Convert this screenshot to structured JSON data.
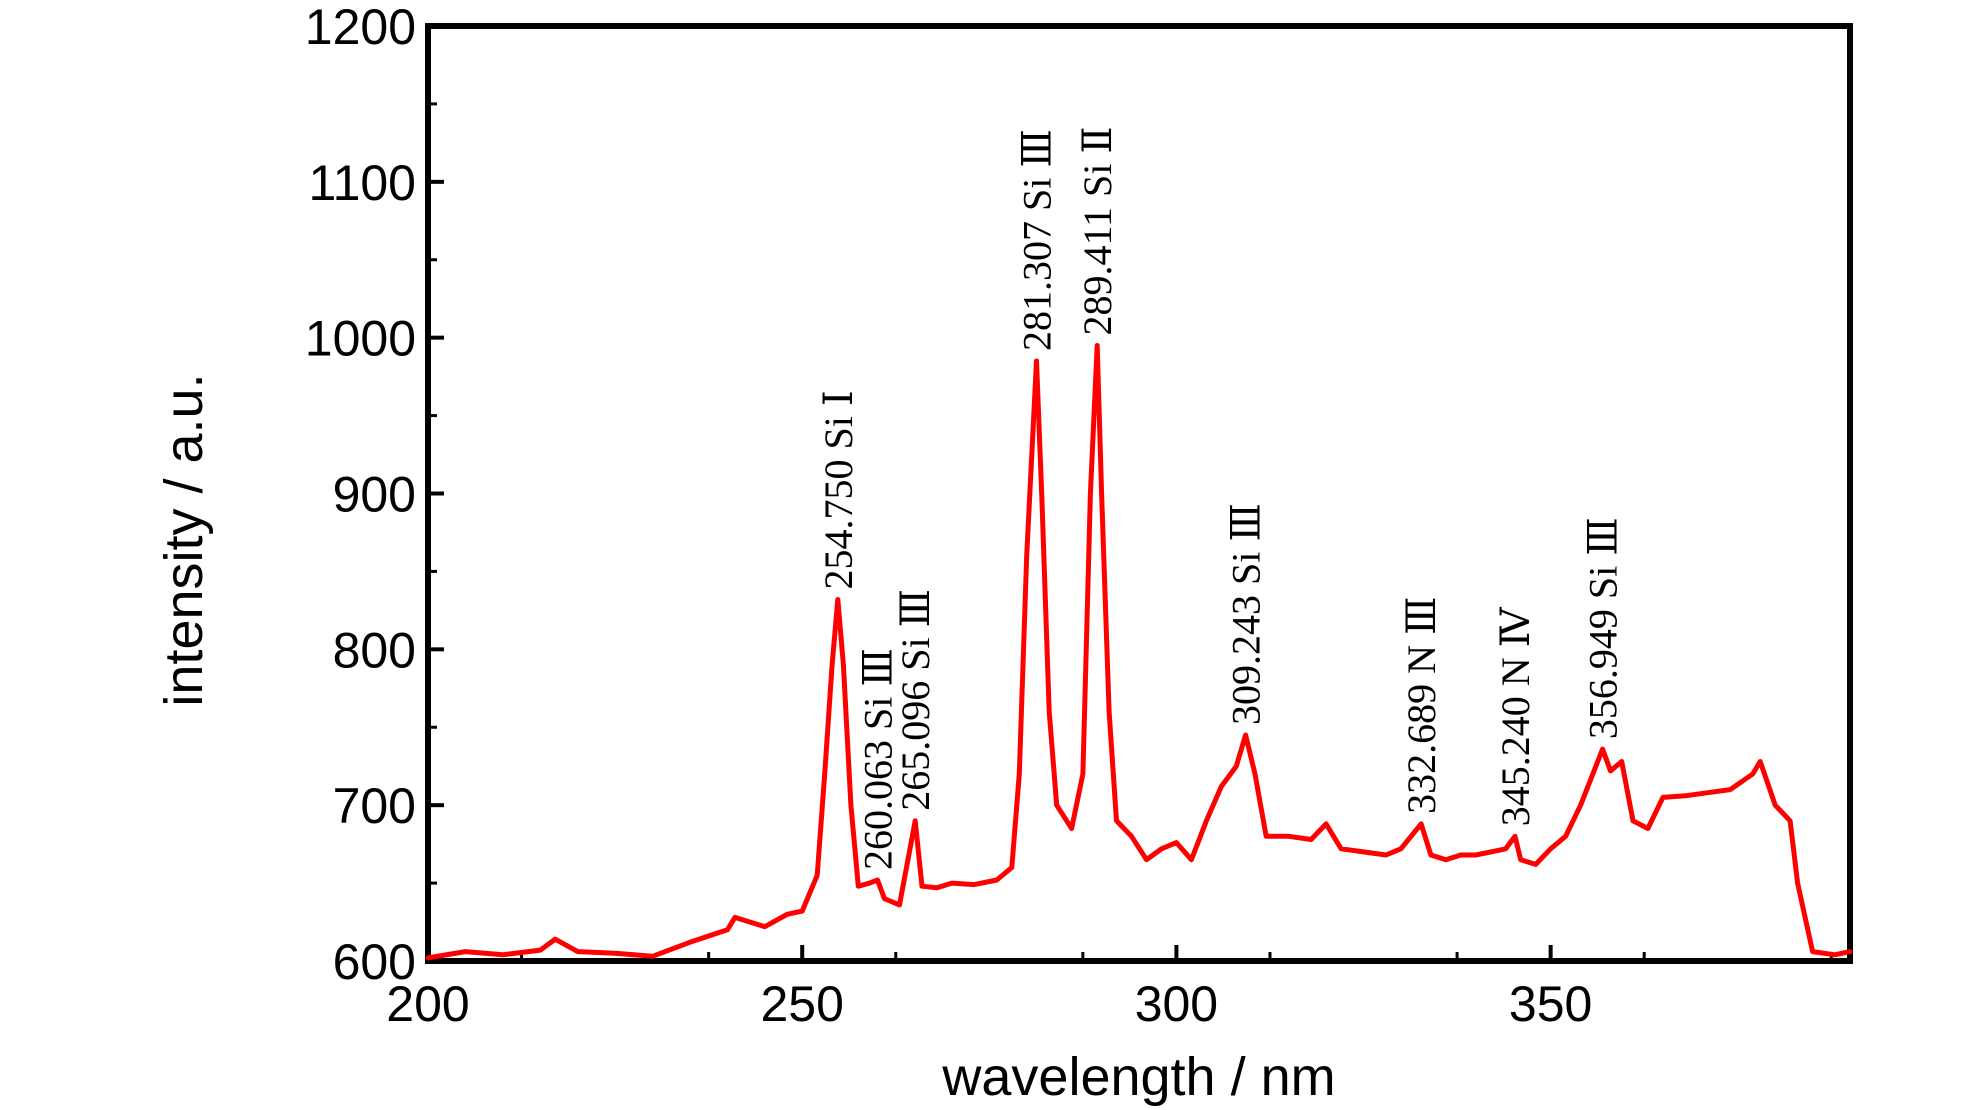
{
  "chart_data": {
    "type": "line",
    "title": "",
    "xlabel": "wavelength / nm",
    "ylabel": "intensity / a.u.",
    "xlim": [
      200,
      390
    ],
    "ylim": [
      600,
      1200
    ],
    "x_ticks": [
      200,
      250,
      300,
      350
    ],
    "x_tick_labels": [
      "200",
      "250",
      "300",
      "350"
    ],
    "y_ticks": [
      600,
      700,
      800,
      900,
      1000,
      1100,
      1200
    ],
    "y_tick_labels": [
      "600",
      "700",
      "800",
      "900",
      "1000",
      "1100",
      "1200"
    ],
    "grid": false,
    "legend": "none",
    "series": [
      {
        "color": "#ff0000",
        "x": [
          200,
          205,
          210,
          215,
          217,
          220,
          225,
          230,
          235,
          240,
          241,
          245,
          248,
          250,
          252,
          253,
          254,
          254.75,
          255.5,
          256.5,
          257.5,
          259,
          260.063,
          261,
          263,
          265.096,
          266,
          268,
          270,
          273,
          276,
          278,
          279,
          280,
          281.307,
          282,
          283,
          284,
          286,
          287.5,
          288.5,
          289.411,
          290,
          291,
          292,
          294,
          296,
          298,
          300,
          302,
          304,
          306,
          308,
          309.243,
          310.5,
          312,
          315,
          318,
          320,
          322,
          325,
          328,
          330,
          332.689,
          334,
          336,
          338,
          340,
          342,
          344,
          345.24,
          346,
          348,
          350,
          352,
          354,
          356.949,
          358,
          359.5,
          361,
          363,
          365,
          368,
          371,
          374,
          377,
          378,
          380,
          382,
          383,
          385,
          388,
          390
        ],
        "y": [
          602,
          606,
          604,
          607,
          614,
          606,
          605,
          603,
          612,
          620,
          628,
          622,
          630,
          632,
          655,
          720,
          790,
          832,
          790,
          700,
          648,
          650,
          652,
          640,
          636,
          690,
          648,
          647,
          650,
          649,
          652,
          660,
          720,
          860,
          985,
          900,
          760,
          700,
          685,
          720,
          900,
          995,
          900,
          760,
          690,
          680,
          665,
          672,
          676,
          665,
          690,
          712,
          725,
          745,
          720,
          680,
          680,
          678,
          688,
          672,
          670,
          668,
          672,
          688,
          668,
          665,
          668,
          668,
          670,
          672,
          680,
          665,
          662,
          672,
          680,
          700,
          736,
          722,
          728,
          690,
          685,
          705,
          706,
          708,
          710,
          720,
          728,
          700,
          690,
          650,
          606,
          604,
          606
        ]
      }
    ],
    "annotations": [
      {
        "text": "254.750 Si Ⅰ",
        "x": 254.75,
        "y": 832
      },
      {
        "text": "260.063 Si Ⅲ",
        "x": 260.063,
        "y": 652
      },
      {
        "text": "265.096 Si Ⅲ",
        "x": 265.096,
        "y": 690
      },
      {
        "text": "281.307 Si Ⅲ",
        "x": 281.307,
        "y": 985
      },
      {
        "text": "289.411 Si Ⅱ",
        "x": 289.411,
        "y": 995
      },
      {
        "text": "309.243 Si Ⅲ",
        "x": 309.243,
        "y": 745
      },
      {
        "text": "332.689 N Ⅲ",
        "x": 332.689,
        "y": 688
      },
      {
        "text": "345.240 N Ⅳ",
        "x": 345.24,
        "y": 680
      },
      {
        "text": "356.949 Si Ⅲ",
        "x": 356.949,
        "y": 736
      }
    ]
  }
}
